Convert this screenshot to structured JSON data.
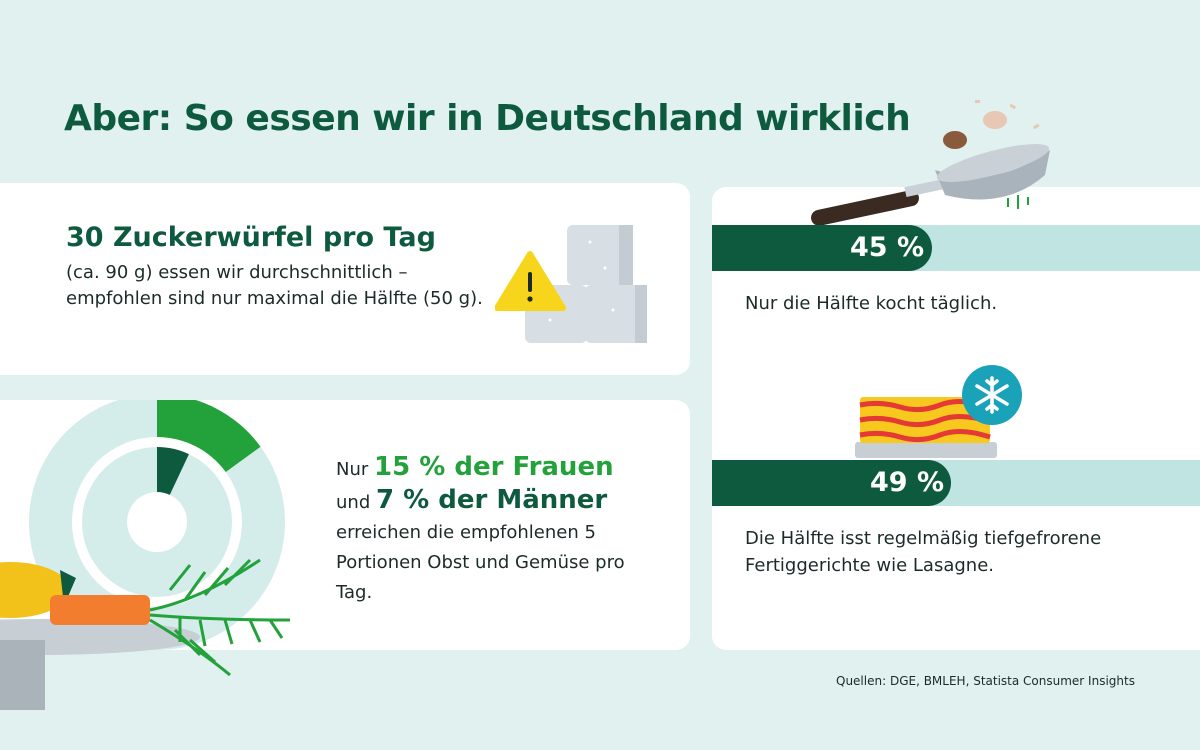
{
  "title": "Aber: So essen wir in Deutschland wirklich",
  "sugar": {
    "headline": "30 Zuckerwürfel pro Tag",
    "body": "(ca. 90 g) essen wir durchschnittlich – empfohlen sind nur maximal die Hälfte (50 g).",
    "icon": "warning-icon"
  },
  "vegetables": {
    "prefix": "Nur",
    "women": "15 % der Frauen",
    "connector": "und",
    "men": "7 % der Männer",
    "body": "erreichen die empfohlenen 5 Portionen Obst und Gemüse pro Tag.",
    "women_percent": 15,
    "men_percent": 7
  },
  "stats": [
    {
      "value_label": "45 %",
      "value": 45,
      "text": "Nur die Hälfte kocht täglich."
    },
    {
      "value_label": "49 %",
      "value": 49,
      "text": "Die Hälfte isst regelmäßig tiefgefrorene Fertiggerichte wie Lasagne."
    }
  ],
  "source": "Quellen: DGE, BMLEH, Statista Consumer Insights",
  "colors": {
    "background": "#e0f1f0",
    "dark_green": "#0e5a3e",
    "bright_green": "#23a13a",
    "light_teal": "#bfe4e2"
  }
}
